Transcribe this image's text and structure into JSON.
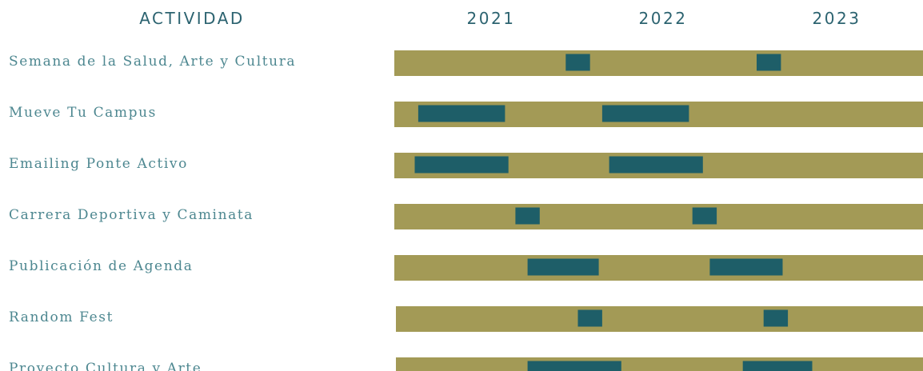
{
  "chart_data": {
    "type": "gantt",
    "header_label": "ACTIVIDAD",
    "years": [
      "2021",
      "2022",
      "2023"
    ],
    "colors": {
      "track": "#a39a56",
      "bar": "#1e5e68",
      "text": "#4d8790",
      "header": "#2c6370"
    },
    "rows": [
      {
        "label": "Semana de la Salud, Arte y Cultura",
        "segments": [
          {
            "start": 2021.93,
            "end": 2022.07
          },
          {
            "start": 2023.03,
            "end": 2023.17
          }
        ]
      },
      {
        "label": "Mueve Tu Campus",
        "segments": [
          {
            "start": 2021.08,
            "end": 2021.58
          },
          {
            "start": 2022.14,
            "end": 2022.64
          }
        ]
      },
      {
        "label": "Emailing Ponte Activo",
        "segments": [
          {
            "start": 2021.06,
            "end": 2021.6
          },
          {
            "start": 2022.18,
            "end": 2022.72
          }
        ]
      },
      {
        "label": "Carrera Deportiva y Caminata",
        "segments": [
          {
            "start": 2021.64,
            "end": 2021.78
          },
          {
            "start": 2022.66,
            "end": 2022.8
          }
        ]
      },
      {
        "label": "Publicación de Agenda",
        "segments": [
          {
            "start": 2021.71,
            "end": 2022.12
          },
          {
            "start": 2022.76,
            "end": 2023.18
          }
        ]
      },
      {
        "label": "Random Fest",
        "segments": [
          {
            "start": 2022.0,
            "end": 2022.14
          },
          {
            "start": 2023.07,
            "end": 2023.21
          }
        ]
      },
      {
        "label": "Proyecto Cultura y Arte",
        "segments": [
          {
            "start": 2021.71,
            "end": 2022.25
          },
          {
            "start": 2022.95,
            "end": 2023.35
          }
        ]
      }
    ]
  }
}
